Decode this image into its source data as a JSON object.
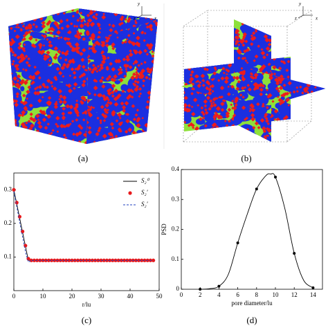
{
  "images": [
    {
      "caption": "(a)",
      "axes": [
        "y",
        "z",
        "x"
      ]
    },
    {
      "caption": "(b)",
      "axes": [
        "y",
        "z",
        "x"
      ]
    }
  ],
  "chart_data": [
    {
      "type": "line",
      "caption": "(c)",
      "xlabel": "r/lu",
      "x": [
        0,
        1,
        2,
        3,
        4,
        5,
        6,
        7,
        8,
        9,
        10,
        11,
        12,
        13,
        14,
        15,
        16,
        17,
        18,
        19,
        20,
        21,
        22,
        23,
        24,
        25,
        26,
        27,
        28,
        29,
        30,
        31,
        32,
        33,
        34,
        35,
        36,
        37,
        38,
        39,
        40,
        41,
        42,
        43,
        44,
        45,
        46,
        47,
        48
      ],
      "series": [
        {
          "name": "S₂⁰",
          "color": "#000000",
          "style": "solid",
          "values": [
            0.3,
            0.258,
            0.216,
            0.174,
            0.132,
            0.09,
            0.09,
            0.09,
            0.09,
            0.09,
            0.09,
            0.09,
            0.09,
            0.09,
            0.09,
            0.09,
            0.09,
            0.09,
            0.09,
            0.09,
            0.09,
            0.09,
            0.09,
            0.09,
            0.09,
            0.09,
            0.09,
            0.09,
            0.09,
            0.09,
            0.09,
            0.09,
            0.09,
            0.09,
            0.09,
            0.09,
            0.09,
            0.09,
            0.09,
            0.09,
            0.09,
            0.09,
            0.09,
            0.09,
            0.09,
            0.09,
            0.09,
            0.09,
            0.09
          ]
        },
        {
          "name": "S₂′",
          "color": "#e8191c",
          "style": "dots",
          "values": [
            0.3,
            0.262,
            0.22,
            0.176,
            0.134,
            0.095,
            0.09,
            0.09,
            0.09,
            0.09,
            0.09,
            0.09,
            0.09,
            0.09,
            0.09,
            0.09,
            0.09,
            0.09,
            0.09,
            0.09,
            0.09,
            0.09,
            0.09,
            0.09,
            0.09,
            0.09,
            0.09,
            0.09,
            0.09,
            0.09,
            0.09,
            0.09,
            0.09,
            0.09,
            0.09,
            0.09,
            0.09,
            0.09,
            0.09,
            0.09,
            0.09,
            0.09,
            0.09,
            0.09,
            0.09,
            0.09,
            0.09,
            0.09,
            0.09
          ]
        },
        {
          "name": "S₂′",
          "color": "#1f3fbf",
          "style": "dashed",
          "values": [
            0.295,
            0.25,
            0.205,
            0.16,
            0.115,
            0.085,
            0.09,
            0.09,
            0.09,
            0.09,
            0.09,
            0.09,
            0.09,
            0.09,
            0.09,
            0.09,
            0.09,
            0.09,
            0.09,
            0.09,
            0.09,
            0.09,
            0.09,
            0.09,
            0.09,
            0.09,
            0.09,
            0.09,
            0.09,
            0.09,
            0.09,
            0.09,
            0.09,
            0.09,
            0.09,
            0.09,
            0.09,
            0.09,
            0.09,
            0.09,
            0.09,
            0.09,
            0.09,
            0.09,
            0.09,
            0.09,
            0.09,
            0.09,
            0.09
          ]
        }
      ],
      "xlim": [
        0,
        50
      ],
      "xticks": [
        0,
        10,
        20,
        30,
        40,
        50
      ],
      "ylim": [
        0,
        0.35
      ],
      "yticks": [
        0.1,
        0.2,
        0.3
      ],
      "legend": "upper right"
    },
    {
      "type": "line",
      "caption": "(d)",
      "xlabel": "pore diameter/lu",
      "ylabel": "PSD",
      "series": [
        {
          "color": "#000000",
          "style": "solid",
          "x": [
            2,
            3,
            4,
            5,
            6,
            7,
            8,
            9,
            9.5,
            10,
            11,
            12,
            13,
            14
          ],
          "values": [
            0,
            0.002,
            0.01,
            0.05,
            0.155,
            0.25,
            0.335,
            0.38,
            0.385,
            0.375,
            0.27,
            0.12,
            0.03,
            0.005
          ]
        },
        {
          "color": "#000000",
          "style": "dots",
          "x": [
            2,
            4,
            6,
            8,
            10,
            12,
            14
          ],
          "values": [
            0,
            0.01,
            0.155,
            0.335,
            0.375,
            0.12,
            0.005
          ]
        }
      ],
      "xlim": [
        0,
        15
      ],
      "xticks": [
        0,
        2,
        4,
        6,
        8,
        10,
        12,
        14
      ],
      "ylim": [
        0,
        0.4
      ],
      "yticks": [
        0,
        0.1,
        0.2,
        0.3,
        0.4
      ]
    }
  ]
}
